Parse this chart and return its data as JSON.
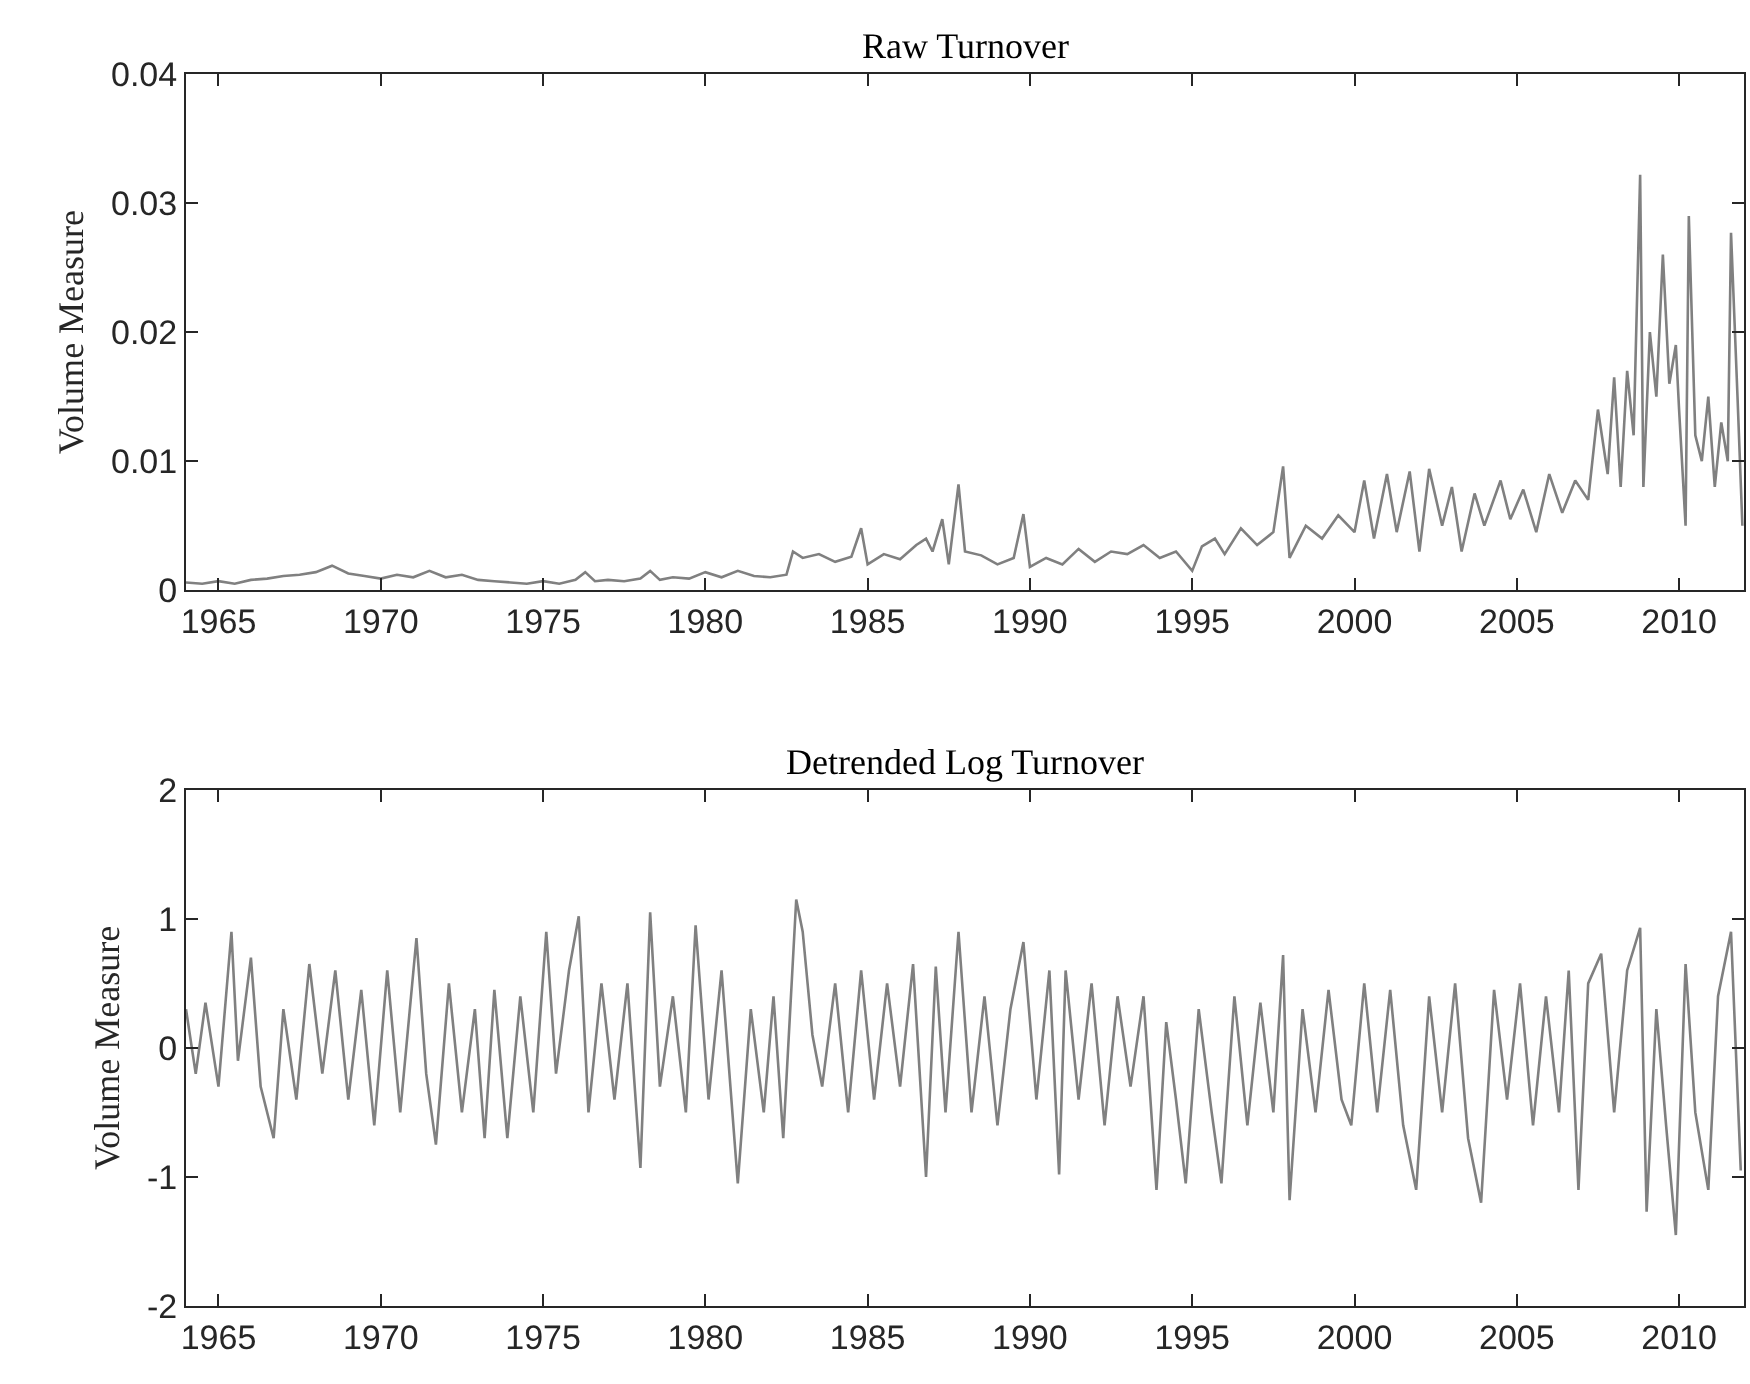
{
  "chart_data": [
    {
      "type": "line",
      "title": "Raw Turnover",
      "ylabel": "Volume Measure",
      "xlim": [
        1964,
        2012
      ],
      "xticks": [
        1965,
        1970,
        1975,
        1980,
        1985,
        1990,
        1995,
        2000,
        2005,
        2010
      ],
      "ylim": [
        0,
        0.04
      ],
      "yticks": [
        0,
        0.01,
        0.02,
        0.03,
        0.04
      ],
      "x": [
        1964.0,
        1964.5,
        1965.0,
        1965.5,
        1966.0,
        1966.5,
        1967.0,
        1967.5,
        1968.0,
        1968.5,
        1969.0,
        1969.5,
        1970.0,
        1970.5,
        1971.0,
        1971.5,
        1972.0,
        1972.5,
        1973.0,
        1973.5,
        1974.0,
        1974.5,
        1975.0,
        1975.5,
        1976.0,
        1976.3,
        1976.6,
        1977.0,
        1977.5,
        1978.0,
        1978.3,
        1978.6,
        1979.0,
        1979.5,
        1980.0,
        1980.5,
        1981.0,
        1981.5,
        1982.0,
        1982.5,
        1982.7,
        1983.0,
        1983.5,
        1984.0,
        1984.5,
        1984.8,
        1985.0,
        1985.5,
        1986.0,
        1986.5,
        1986.8,
        1987.0,
        1987.3,
        1987.5,
        1987.8,
        1988.0,
        1988.5,
        1989.0,
        1989.5,
        1989.8,
        1990.0,
        1990.5,
        1991.0,
        1991.5,
        1992.0,
        1992.5,
        1993.0,
        1993.5,
        1994.0,
        1994.5,
        1995.0,
        1995.3,
        1995.7,
        1996.0,
        1996.5,
        1997.0,
        1997.5,
        1997.8,
        1998.0,
        1998.5,
        1999.0,
        1999.5,
        2000.0,
        2000.3,
        2000.6,
        2001.0,
        2001.3,
        2001.7,
        2002.0,
        2002.3,
        2002.7,
        2003.0,
        2003.3,
        2003.7,
        2004.0,
        2004.5,
        2004.8,
        2005.2,
        2005.6,
        2006.0,
        2006.4,
        2006.8,
        2007.2,
        2007.5,
        2007.8,
        2008.0,
        2008.2,
        2008.4,
        2008.6,
        2008.8,
        2008.9,
        2009.1,
        2009.3,
        2009.5,
        2009.7,
        2009.9,
        2010.0,
        2010.2,
        2010.3,
        2010.5,
        2010.7,
        2010.9,
        2011.1,
        2011.3,
        2011.5,
        2011.6,
        2011.8,
        2011.95
      ],
      "series": [
        {
          "color": "#808080",
          "values": [
            0.0006,
            0.0005,
            0.0007,
            0.0005,
            0.0008,
            0.0009,
            0.0011,
            0.0012,
            0.0014,
            0.0019,
            0.0013,
            0.0011,
            0.0009,
            0.0012,
            0.001,
            0.0015,
            0.001,
            0.0012,
            0.0008,
            0.0007,
            0.0006,
            0.0005,
            0.0007,
            0.0005,
            0.0008,
            0.0014,
            0.0007,
            0.0008,
            0.0007,
            0.0009,
            0.0015,
            0.0008,
            0.001,
            0.0009,
            0.0014,
            0.001,
            0.0015,
            0.0011,
            0.001,
            0.0012,
            0.003,
            0.0025,
            0.0028,
            0.0022,
            0.0026,
            0.0048,
            0.002,
            0.0028,
            0.0024,
            0.0035,
            0.004,
            0.003,
            0.0055,
            0.002,
            0.0082,
            0.003,
            0.0027,
            0.002,
            0.0025,
            0.0059,
            0.0018,
            0.0025,
            0.002,
            0.0032,
            0.0022,
            0.003,
            0.0028,
            0.0035,
            0.0025,
            0.003,
            0.0015,
            0.0034,
            0.004,
            0.0028,
            0.0048,
            0.0035,
            0.0045,
            0.0096,
            0.0025,
            0.005,
            0.004,
            0.0058,
            0.0045,
            0.0085,
            0.004,
            0.009,
            0.0045,
            0.0092,
            0.003,
            0.0094,
            0.005,
            0.008,
            0.003,
            0.0075,
            0.005,
            0.0085,
            0.0055,
            0.0078,
            0.0045,
            0.009,
            0.006,
            0.0085,
            0.007,
            0.014,
            0.009,
            0.0165,
            0.008,
            0.017,
            0.012,
            0.0322,
            0.008,
            0.02,
            0.015,
            0.026,
            0.016,
            0.019,
            0.014,
            0.005,
            0.029,
            0.012,
            0.01,
            0.015,
            0.008,
            0.013,
            0.01,
            0.0277,
            0.015,
            0.005
          ]
        }
      ]
    },
    {
      "type": "line",
      "title": "Detrended Log Turnover",
      "ylabel": "Volume Measure",
      "xlim": [
        1964,
        2012
      ],
      "xticks": [
        1965,
        1970,
        1975,
        1980,
        1985,
        1990,
        1995,
        2000,
        2005,
        2010
      ],
      "ylim": [
        -2,
        2
      ],
      "yticks": [
        -2,
        -1,
        0,
        1,
        2
      ],
      "x": [
        1964.0,
        1964.3,
        1964.6,
        1965.0,
        1965.4,
        1965.6,
        1966.0,
        1966.3,
        1966.7,
        1967.0,
        1967.4,
        1967.8,
        1968.2,
        1968.6,
        1969.0,
        1969.4,
        1969.8,
        1970.2,
        1970.6,
        1971.1,
        1971.4,
        1971.7,
        1972.1,
        1972.5,
        1972.9,
        1973.2,
        1973.5,
        1973.9,
        1974.3,
        1974.7,
        1975.1,
        1975.4,
        1975.8,
        1976.1,
        1976.4,
        1976.8,
        1977.2,
        1977.6,
        1978.0,
        1978.3,
        1978.6,
        1979.0,
        1979.4,
        1979.7,
        1980.1,
        1980.5,
        1981.0,
        1981.4,
        1981.8,
        1982.1,
        1982.4,
        1982.8,
        1983.0,
        1983.3,
        1983.6,
        1984.0,
        1984.4,
        1984.8,
        1985.2,
        1985.6,
        1986.0,
        1986.4,
        1986.8,
        1987.1,
        1987.4,
        1987.8,
        1988.2,
        1988.6,
        1989.0,
        1989.4,
        1989.8,
        1990.2,
        1990.6,
        1990.9,
        1991.1,
        1991.5,
        1991.9,
        1992.3,
        1992.7,
        1993.1,
        1993.5,
        1993.9,
        1994.2,
        1994.5,
        1994.8,
        1995.2,
        1995.6,
        1995.9,
        1996.3,
        1996.7,
        1997.1,
        1997.5,
        1997.8,
        1998.0,
        1998.4,
        1998.8,
        1999.2,
        1999.6,
        1999.9,
        2000.3,
        2000.7,
        2001.1,
        2001.5,
        2001.9,
        2002.3,
        2002.7,
        2003.1,
        2003.5,
        2003.9,
        2004.3,
        2004.7,
        2005.1,
        2005.5,
        2005.9,
        2006.3,
        2006.6,
        2006.9,
        2007.2,
        2007.6,
        2008.0,
        2008.4,
        2008.8,
        2009.0,
        2009.3,
        2009.6,
        2009.9,
        2010.2,
        2010.5,
        2010.9,
        2011.2,
        2011.6,
        2011.9
      ],
      "series": [
        {
          "color": "#808080",
          "values": [
            0.3,
            -0.2,
            0.35,
            -0.3,
            0.9,
            -0.1,
            0.7,
            -0.3,
            -0.7,
            0.3,
            -0.4,
            0.65,
            -0.2,
            0.6,
            -0.4,
            0.45,
            -0.6,
            0.6,
            -0.5,
            0.85,
            -0.2,
            -0.75,
            0.5,
            -0.5,
            0.3,
            -0.7,
            0.45,
            -0.7,
            0.4,
            -0.5,
            0.9,
            -0.2,
            0.6,
            1.02,
            -0.5,
            0.5,
            -0.4,
            0.5,
            -0.93,
            1.05,
            -0.3,
            0.4,
            -0.5,
            0.95,
            -0.4,
            0.6,
            -1.05,
            0.3,
            -0.5,
            0.4,
            -0.7,
            1.15,
            0.9,
            0.1,
            -0.3,
            0.5,
            -0.5,
            0.6,
            -0.4,
            0.5,
            -0.3,
            0.65,
            -1.0,
            0.63,
            -0.5,
            0.9,
            -0.5,
            0.4,
            -0.6,
            0.3,
            0.82,
            -0.4,
            0.6,
            -0.98,
            0.6,
            -0.4,
            0.5,
            -0.6,
            0.4,
            -0.3,
            0.4,
            -1.1,
            0.2,
            -0.4,
            -1.05,
            0.3,
            -0.5,
            -1.05,
            0.4,
            -0.6,
            0.35,
            -0.5,
            0.72,
            -1.18,
            0.3,
            -0.5,
            0.45,
            -0.4,
            -0.6,
            0.5,
            -0.5,
            0.45,
            -0.6,
            -1.1,
            0.4,
            -0.5,
            0.5,
            -0.7,
            -1.2,
            0.45,
            -0.4,
            0.5,
            -0.6,
            0.4,
            -0.5,
            0.6,
            -1.1,
            0.5,
            0.73,
            -0.5,
            0.6,
            0.93,
            -1.27,
            0.3,
            -0.6,
            -1.45,
            0.65,
            -0.5,
            -1.1,
            0.4,
            0.9,
            -0.95
          ]
        }
      ]
    }
  ]
}
